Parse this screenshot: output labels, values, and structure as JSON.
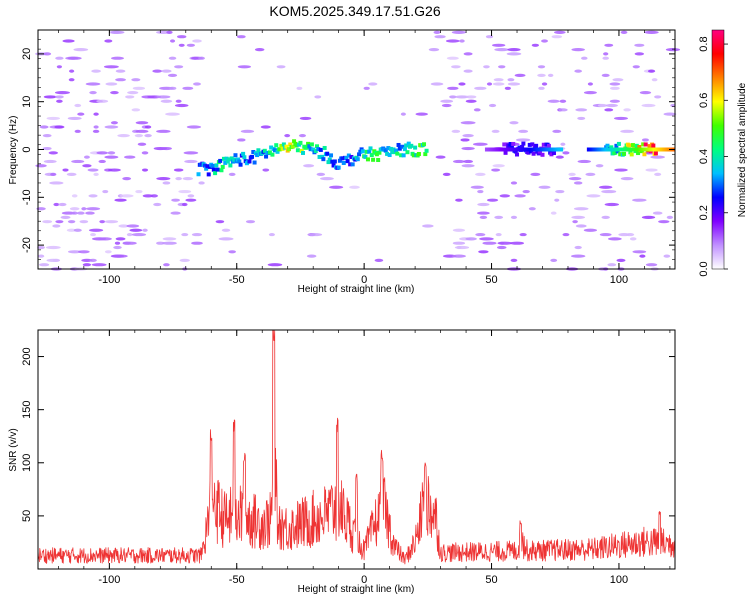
{
  "title": "KOM5.2025.349.17.51.G26",
  "chart_data": [
    {
      "type": "heatmap",
      "name": "spectrogram",
      "xlabel": "Height of straight line (km)",
      "ylabel": "Frequency (Hz)",
      "xlim": [
        -128,
        122
      ],
      "ylim": [
        -25,
        25
      ],
      "x_ticks": [
        -100,
        -50,
        0,
        50,
        100
      ],
      "y_ticks": [
        -20,
        -10,
        0,
        10,
        20
      ],
      "colorbar": {
        "label": "Normalized spectral amplitude",
        "range": [
          0,
          0.85
        ],
        "ticks": [
          0.0,
          0.2,
          0.4,
          0.6,
          0.8
        ],
        "colors": [
          "#ffffff",
          "#c090ff",
          "#8000ff",
          "#0000ff",
          "#00c0ff",
          "#00ff80",
          "#40ff00",
          "#ffff00",
          "#ff8000",
          "#ff0000",
          "#ff0080"
        ]
      },
      "main_signal": [
        {
          "x": -65,
          "f": -4,
          "a": 0.3
        },
        {
          "x": -60,
          "f": -4,
          "a": 0.35
        },
        {
          "x": -55,
          "f": -3,
          "a": 0.4
        },
        {
          "x": -50,
          "f": -2,
          "a": 0.35
        },
        {
          "x": -45,
          "f": -2,
          "a": 0.3
        },
        {
          "x": -40,
          "f": -1,
          "a": 0.35
        },
        {
          "x": -35,
          "f": 0,
          "a": 0.4
        },
        {
          "x": -30,
          "f": 0.5,
          "a": 0.55
        },
        {
          "x": -25,
          "f": 0.5,
          "a": 0.5
        },
        {
          "x": -20,
          "f": 0,
          "a": 0.4
        },
        {
          "x": -15,
          "f": -1,
          "a": 0.35
        },
        {
          "x": -10,
          "f": -3,
          "a": 0.3
        },
        {
          "x": -5,
          "f": -2,
          "a": 0.3
        },
        {
          "x": 0,
          "f": -1,
          "a": 0.4
        },
        {
          "x": 5,
          "f": -1,
          "a": 0.45
        },
        {
          "x": 10,
          "f": -0.5,
          "a": 0.35
        },
        {
          "x": 15,
          "f": 0,
          "a": 0.4
        },
        {
          "x": 20,
          "f": 0,
          "a": 0.45
        },
        {
          "x": 25,
          "f": 0,
          "a": 0.5
        },
        {
          "x": 55,
          "f": 0,
          "a": 0.2
        },
        {
          "x": 65,
          "f": 0,
          "a": 0.25
        },
        {
          "x": 75,
          "f": 0,
          "a": 0.2
        },
        {
          "x": 95,
          "f": 0,
          "a": 0.3
        },
        {
          "x": 105,
          "f": 0,
          "a": 0.55
        },
        {
          "x": 115,
          "f": 0,
          "a": 0.85
        }
      ]
    },
    {
      "type": "line",
      "name": "snr",
      "xlabel": "Height of straight line (km)",
      "ylabel": "SNR (v/v)",
      "xlim": [
        -128,
        122
      ],
      "ylim": [
        0,
        225
      ],
      "x_ticks": [
        -100,
        -50,
        0,
        50,
        100
      ],
      "y_ticks": [
        50,
        100,
        150,
        200
      ],
      "color": "#ee3333",
      "envelope": [
        {
          "x": -128,
          "y": 15
        },
        {
          "x": -64,
          "y": 15
        },
        {
          "x": -62,
          "y": 40
        },
        {
          "x": -60,
          "y": 75
        },
        {
          "x": -55,
          "y": 55
        },
        {
          "x": -50,
          "y": 60
        },
        {
          "x": -45,
          "y": 55
        },
        {
          "x": -40,
          "y": 50
        },
        {
          "x": -36,
          "y": 55
        },
        {
          "x": -30,
          "y": 45
        },
        {
          "x": -25,
          "y": 50
        },
        {
          "x": -20,
          "y": 55
        },
        {
          "x": -15,
          "y": 60
        },
        {
          "x": -10,
          "y": 70
        },
        {
          "x": -5,
          "y": 45
        },
        {
          "x": 0,
          "y": 20
        },
        {
          "x": 5,
          "y": 55
        },
        {
          "x": 8,
          "y": 65
        },
        {
          "x": 12,
          "y": 25
        },
        {
          "x": 16,
          "y": 10
        },
        {
          "x": 20,
          "y": 30
        },
        {
          "x": 24,
          "y": 75
        },
        {
          "x": 28,
          "y": 60
        },
        {
          "x": 30,
          "y": 18
        },
        {
          "x": 60,
          "y": 20
        },
        {
          "x": 62,
          "y": 30
        },
        {
          "x": 64,
          "y": 20
        },
        {
          "x": 90,
          "y": 22
        },
        {
          "x": 110,
          "y": 30
        },
        {
          "x": 122,
          "y": 28
        }
      ],
      "peaks": [
        {
          "x": -60,
          "y": 133
        },
        {
          "x": -51,
          "y": 141
        },
        {
          "x": -47,
          "y": 110
        },
        {
          "x": -35.5,
          "y": 228
        },
        {
          "x": -10.5,
          "y": 142
        },
        {
          "x": -3,
          "y": 90
        },
        {
          "x": 7,
          "y": 112
        },
        {
          "x": 24,
          "y": 100
        },
        {
          "x": 61.5,
          "y": 46
        },
        {
          "x": 116,
          "y": 55
        }
      ]
    }
  ]
}
